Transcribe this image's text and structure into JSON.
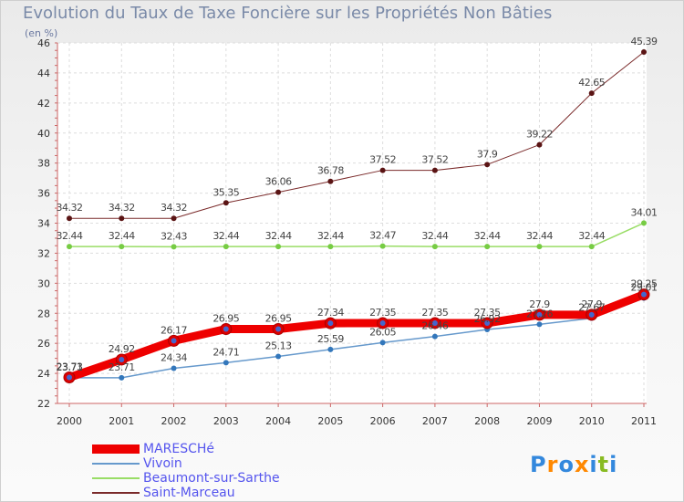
{
  "chart_data": {
    "type": "line",
    "title": "Evolution du Taux de Taxe Foncière sur les Propriétés Non Bâties",
    "unit_label": "(en %)",
    "xlabel": "",
    "ylabel": "",
    "ylim": [
      22,
      46
    ],
    "yticks": [
      22,
      24,
      26,
      28,
      30,
      32,
      34,
      36,
      38,
      40,
      42,
      44,
      46
    ],
    "categories": [
      "2000",
      "2001",
      "2002",
      "2003",
      "2004",
      "2005",
      "2006",
      "2007",
      "2008",
      "2009",
      "2010",
      "2011"
    ],
    "series": [
      {
        "name": "Saint-Marceau",
        "color": "#7a2a2a",
        "marker_color": "#5a1414",
        "width": 1,
        "values": [
          34.32,
          34.32,
          34.32,
          35.35,
          36.06,
          36.78,
          37.52,
          37.52,
          37.9,
          39.22,
          42.65,
          45.39
        ],
        "labels": [
          "34.32",
          "34.32",
          "34.32",
          "35.35",
          "36.06",
          "36.78",
          "37.52",
          "37.52",
          "37.9",
          "39.22",
          "42.65",
          "45.39"
        ]
      },
      {
        "name": "Beaumont-sur-Sarthe",
        "color": "#99dd66",
        "marker_color": "#77cc44",
        "width": 1.5,
        "values": [
          32.44,
          32.44,
          32.43,
          32.44,
          32.44,
          32.44,
          32.47,
          32.44,
          32.44,
          32.44,
          32.44,
          34.01
        ],
        "labels": [
          "32.44",
          "32.44",
          "32.43",
          "32.44",
          "32.44",
          "32.44",
          "32.47",
          "32.44",
          "32.44",
          "32.44",
          "32.44",
          "34.01"
        ]
      },
      {
        "name": "Vivoin",
        "color": "#6699cc",
        "marker_color": "#3377bb",
        "width": 1.5,
        "values": [
          23.71,
          23.71,
          24.34,
          24.71,
          25.13,
          25.59,
          26.05,
          26.46,
          26.92,
          27.26,
          27.67,
          29.01
        ],
        "labels": [
          "23.71",
          "23.71",
          "24.34",
          "24.71",
          "25.13",
          "25.59",
          "26.05",
          "26.46",
          "26.92",
          "27.26",
          "27.67",
          "29.01"
        ]
      },
      {
        "name": "MARESCHé",
        "color": "#ee0000",
        "marker_color": "#dd0000",
        "width": 9,
        "values": [
          23.73,
          24.92,
          26.17,
          26.95,
          26.95,
          27.34,
          27.35,
          27.35,
          27.35,
          27.9,
          27.9,
          29.25
        ],
        "labels": [
          "23.73",
          "24.92",
          "26.17",
          "26.95",
          "26.95",
          "27.34",
          "27.35",
          "27.35",
          "27.35",
          "27.9",
          "27.9",
          "29.25"
        ]
      }
    ],
    "legend": [
      {
        "name": "MARESCHé",
        "color": "#ee0000",
        "thickness": 10
      },
      {
        "name": "Vivoin",
        "color": "#6699cc",
        "thickness": 2
      },
      {
        "name": "Beaumont-sur-Sarthe",
        "color": "#99dd66",
        "thickness": 2
      },
      {
        "name": "Saint-Marceau",
        "color": "#7a2a2a",
        "thickness": 2
      }
    ],
    "legend_position": "bottom-left",
    "grid": true
  },
  "logo": {
    "letters": [
      "P",
      "r",
      "o",
      "x",
      "i",
      "t",
      "i"
    ],
    "colors": [
      "#3388dd",
      "#ff8800",
      "#3388dd",
      "#ff8800",
      "#3388dd",
      "#88bb22",
      "#3388dd"
    ]
  }
}
